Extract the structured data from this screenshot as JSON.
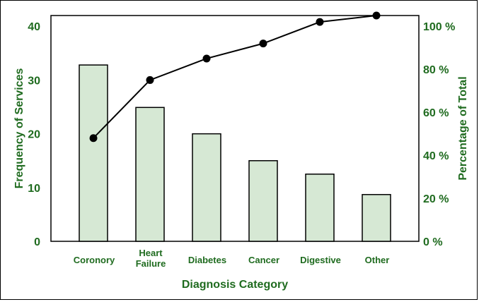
{
  "chart_data": {
    "type": "bar",
    "xlabel": "Diagnosis Category",
    "ylabel": "Frequency of Services",
    "y2label": "Percentage of Total",
    "categories": [
      "Coronory",
      "Heart\nFailure",
      "Diabetes",
      "Cancer",
      "Digestive",
      "Other"
    ],
    "values": [
      32.8,
      24.9,
      20,
      15,
      12.5,
      8.7
    ],
    "cumulative_percent": [
      48,
      75,
      85,
      92,
      102,
      105
    ],
    "ylim": [
      0,
      42
    ],
    "y2lim": [
      0,
      105
    ],
    "yticks": [
      0,
      10,
      20,
      30,
      40
    ],
    "y2ticks": [
      0,
      20,
      40,
      60,
      80,
      100
    ],
    "y2tick_labels": [
      "0 %",
      "20 %",
      "40 %",
      "60 %",
      "80 %",
      "100 %"
    ],
    "grid": false,
    "colors": {
      "bar_fill": "#d6e8d4",
      "bar_stroke": "#000000",
      "line": "#000000",
      "text": "#1f6b1f"
    }
  }
}
